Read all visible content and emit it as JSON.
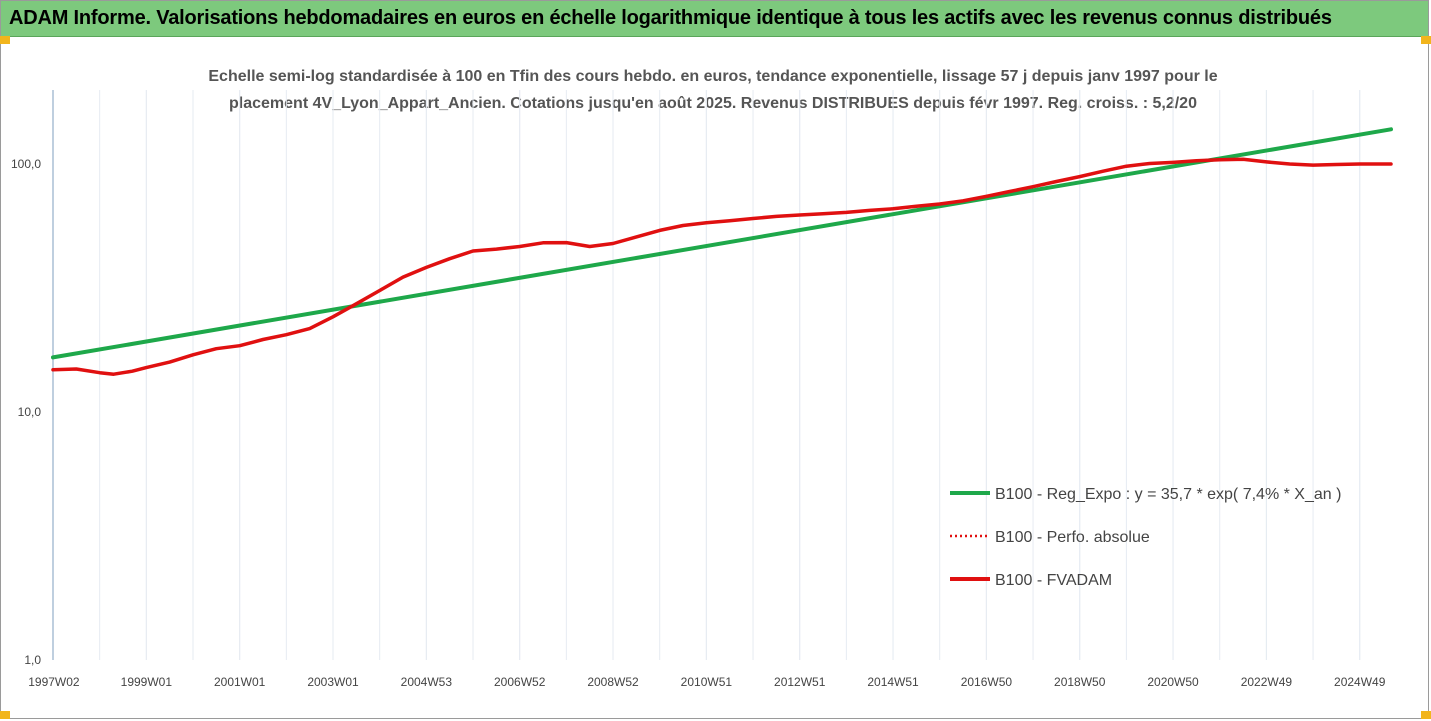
{
  "banner": {
    "title": "ADAM Informe. Valorisations hebdomadaires en euros en échelle logarithmique identique à tous les actifs avec les revenus connus distribués"
  },
  "chart_data": {
    "type": "line",
    "subtitle_line1": "Echelle semi-log standardisée à 100 en Tfin des cours hebdo. en euros, tendance exponentielle, lissage 57 j depuis janv 1997 pour le",
    "subtitle_line2": "placement 4V_Lyon_Appart_Ancien. Cotations jusqu'en août 2025. Revenus DISTRIBUES depuis févr 1997.  Reg. croiss. : 5,2/20",
    "y_scale": "log",
    "ylim": [
      1,
      200
    ],
    "y_ticks": [
      {
        "value": 1,
        "label": "1,0"
      },
      {
        "value": 10,
        "label": "10,0"
      },
      {
        "value": 100,
        "label": "100,0"
      }
    ],
    "xlim": [
      1997.0,
      2025.67
    ],
    "x_ticks": [
      {
        "value": 1997.02,
        "label": "1997W02"
      },
      {
        "value": 1999.0,
        "label": "1999W01"
      },
      {
        "value": 2001.0,
        "label": "2001W01"
      },
      {
        "value": 2003.0,
        "label": "2003W01"
      },
      {
        "value": 2005.0,
        "label": "2004W53"
      },
      {
        "value": 2007.0,
        "label": "2006W52"
      },
      {
        "value": 2009.0,
        "label": "2008W52"
      },
      {
        "value": 2011.0,
        "label": "2010W51"
      },
      {
        "value": 2013.0,
        "label": "2012W51"
      },
      {
        "value": 2015.0,
        "label": "2014W51"
      },
      {
        "value": 2017.0,
        "label": "2016W50"
      },
      {
        "value": 2019.0,
        "label": "2018W50"
      },
      {
        "value": 2021.0,
        "label": "2020W50"
      },
      {
        "value": 2023.0,
        "label": "2022W49"
      },
      {
        "value": 2025.0,
        "label": "2024W49"
      }
    ],
    "grid": "vertical",
    "legend_position": "bottom-right",
    "series": [
      {
        "name": "B100 - Reg_Expo : y = 35,7 * exp( 7,4% *  X_an )",
        "color": "#1ea84a",
        "style": "solid",
        "x": [
          1997.0,
          2025.67
        ],
        "y": [
          16.6,
          138.0
        ]
      },
      {
        "name": "B100 - Perfo. absolue",
        "color": "#e01010",
        "style": "dotted",
        "x": [],
        "y": []
      },
      {
        "name": "B100 - FVADAM",
        "color": "#e01010",
        "style": "solid",
        "x": [
          1997.0,
          1997.5,
          1998.0,
          1998.3,
          1998.7,
          1999.0,
          1999.5,
          2000.0,
          2000.5,
          2001.0,
          2001.5,
          2002.0,
          2002.5,
          2003.0,
          2003.5,
          2004.0,
          2004.5,
          2005.0,
          2005.5,
          2006.0,
          2006.5,
          2007.0,
          2007.5,
          2008.0,
          2008.5,
          2009.0,
          2009.5,
          2010.0,
          2010.5,
          2011.0,
          2011.5,
          2012.0,
          2012.5,
          2013.0,
          2013.5,
          2014.0,
          2014.5,
          2015.0,
          2015.5,
          2016.0,
          2016.5,
          2017.0,
          2017.5,
          2018.0,
          2018.5,
          2019.0,
          2019.5,
          2020.0,
          2020.5,
          2021.0,
          2021.5,
          2022.0,
          2022.5,
          2023.0,
          2023.5,
          2024.0,
          2024.5,
          2025.0,
          2025.67
        ],
        "y": [
          14.8,
          14.9,
          14.4,
          14.2,
          14.6,
          15.1,
          15.9,
          17.0,
          18.0,
          18.5,
          19.6,
          20.5,
          21.7,
          24.2,
          27.3,
          30.9,
          35.0,
          38.3,
          41.5,
          44.6,
          45.4,
          46.5,
          48.1,
          48.2,
          46.5,
          47.8,
          50.8,
          54.0,
          56.5,
          58.0,
          59.0,
          60.3,
          61.5,
          62.3,
          63.0,
          63.8,
          65.0,
          66.0,
          67.5,
          69.0,
          71.0,
          74.0,
          77.5,
          81.0,
          85.0,
          89.0,
          93.5,
          98.0,
          100.5,
          101.5,
          103.0,
          104.0,
          104.5,
          102.0,
          100.0,
          99.0,
          99.5,
          100.0,
          100.0
        ]
      }
    ]
  }
}
